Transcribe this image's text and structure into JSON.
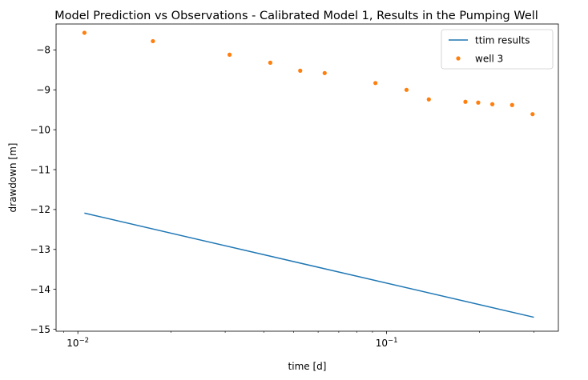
{
  "chart_data": {
    "type": "line",
    "title": "Model Prediction vs Observations - Calibrated Model 1, Results in the Pumping Well",
    "xlabel": "time [d]",
    "ylabel": "drawdown [m]",
    "xscale": "log",
    "xlim": [
      0.0085,
      0.36
    ],
    "ylim": [
      -15.05,
      -7.35
    ],
    "xticks": [
      {
        "value": 0.01,
        "base": "10",
        "exp": "−2"
      },
      {
        "value": 0.1,
        "base": "10",
        "exp": "−1"
      }
    ],
    "yticks": [
      {
        "value": -8,
        "label": "−8"
      },
      {
        "value": -9,
        "label": "−9"
      },
      {
        "value": -10,
        "label": "−10"
      },
      {
        "value": -11,
        "label": "−11"
      },
      {
        "value": -12,
        "label": "−12"
      },
      {
        "value": -13,
        "label": "−13"
      },
      {
        "value": -14,
        "label": "−14"
      },
      {
        "value": -15,
        "label": "−15"
      }
    ],
    "legend_position": "top-right",
    "series": [
      {
        "name": "ttim results",
        "kind": "line",
        "color": "#1f77b4",
        "x": [
          0.0105,
          0.3
        ],
        "y": [
          -12.09,
          -14.7
        ]
      },
      {
        "name": "well 3",
        "kind": "scatter",
        "color": "#ff7f0e",
        "x": [
          0.0105,
          0.0175,
          0.031,
          0.042,
          0.0525,
          0.063,
          0.092,
          0.116,
          0.137,
          0.18,
          0.198,
          0.22,
          0.255,
          0.297
        ],
        "y": [
          -7.57,
          -7.78,
          -8.12,
          -8.32,
          -8.52,
          -8.58,
          -8.83,
          -9.0,
          -9.24,
          -9.3,
          -9.32,
          -9.36,
          -9.38,
          -9.61
        ]
      }
    ]
  }
}
